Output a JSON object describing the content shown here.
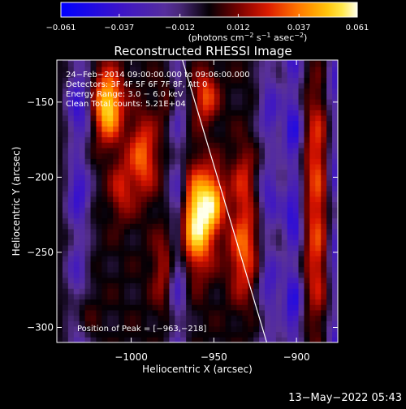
{
  "chart_data": {
    "type": "heatmap",
    "title": "Reconstructed RHESSI Image",
    "xlabel": "Heliocentric X (arcsec)",
    "ylabel": "Heliocentric Y (arcsec)",
    "xlim": [
      -1045,
      -875
    ],
    "ylim": [
      -310,
      -122
    ],
    "x_ticks": [
      -1000,
      -950,
      -900
    ],
    "y_ticks": [
      -150,
      -200,
      -250,
      -300
    ],
    "x_tick_labels": [
      "−1000",
      "−950",
      "−900"
    ],
    "y_tick_labels": [
      "−150",
      "−200",
      "−250",
      "−300"
    ],
    "colorbar": {
      "min": -0.061,
      "max": 0.061,
      "ticks": [
        -0.061,
        -0.037,
        -0.012,
        0.012,
        0.037,
        0.061
      ],
      "tick_labels": [
        "−0.061",
        "−0.037",
        "−0.012",
        "0.012",
        "0.037",
        "0.061"
      ],
      "units_prefix": "(photons cm",
      "units_sup1": "−2",
      "units_mid": " s",
      "units_sup2": "−1",
      "units_mid2": " asec",
      "units_sup3": "−2",
      "units_suffix": ")"
    },
    "annotations": [
      "24−Feb−2014 09:00:00.000  to  09:06:00.000",
      "Detectors: 3F 4F 5F 6F 7F 8F, Att 0",
      "Energy Range: 3.0 − 6.0 keV",
      "Clean  Total counts: 5.21E+04"
    ],
    "peak_label": "Position of Peak = [−963,−218]",
    "peak_position": [
      -963,
      -218
    ],
    "limb_line": [
      [
        -969,
        -122
      ],
      [
        -918,
        -310
      ]
    ],
    "sources": [
      {
        "x": -960,
        "y": -228,
        "amp": 1.0,
        "sx": 7,
        "sy": 22
      },
      {
        "x": -950,
        "y": -215,
        "amp": 0.55,
        "sx": 5,
        "sy": 14
      },
      {
        "x": -1014,
        "y": -152,
        "amp": 0.9,
        "sx": 6,
        "sy": 16
      },
      {
        "x": -993,
        "y": -186,
        "amp": 0.55,
        "sx": 6,
        "sy": 18
      },
      {
        "x": -1006,
        "y": -208,
        "amp": 0.35,
        "sx": 5,
        "sy": 14
      },
      {
        "x": -955,
        "y": -146,
        "amp": 0.5,
        "sx": 5,
        "sy": 12
      },
      {
        "x": -932,
        "y": -248,
        "amp": 0.55,
        "sx": 6,
        "sy": 22
      },
      {
        "x": -932,
        "y": -200,
        "amp": 0.32,
        "sx": 5,
        "sy": 16
      },
      {
        "x": -888,
        "y": -250,
        "amp": 0.42,
        "sx": 5,
        "sy": 35
      },
      {
        "x": -888,
        "y": -180,
        "amp": 0.38,
        "sx": 5,
        "sy": 30
      },
      {
        "x": -1030,
        "y": -282,
        "amp": 0.35,
        "sx": 5,
        "sy": 16
      },
      {
        "x": -980,
        "y": -262,
        "amp": 0.32,
        "sx": 5,
        "sy": 18
      },
      {
        "x": -975,
        "y": -150,
        "amp": 0.3,
        "sx": 5,
        "sy": 12
      }
    ],
    "negative_columns": [
      {
        "x": -1032,
        "amp": 0.65,
        "sx": 5
      },
      {
        "x": -972,
        "amp": 0.55,
        "sx": 4
      },
      {
        "x": -916,
        "amp": 0.55,
        "sx": 5
      },
      {
        "x": -902,
        "amp": 0.75,
        "sx": 4
      },
      {
        "x": -876,
        "amp": 0.55,
        "sx": 4
      }
    ]
  },
  "footer": {
    "date": "13−May−2022 05:43"
  }
}
